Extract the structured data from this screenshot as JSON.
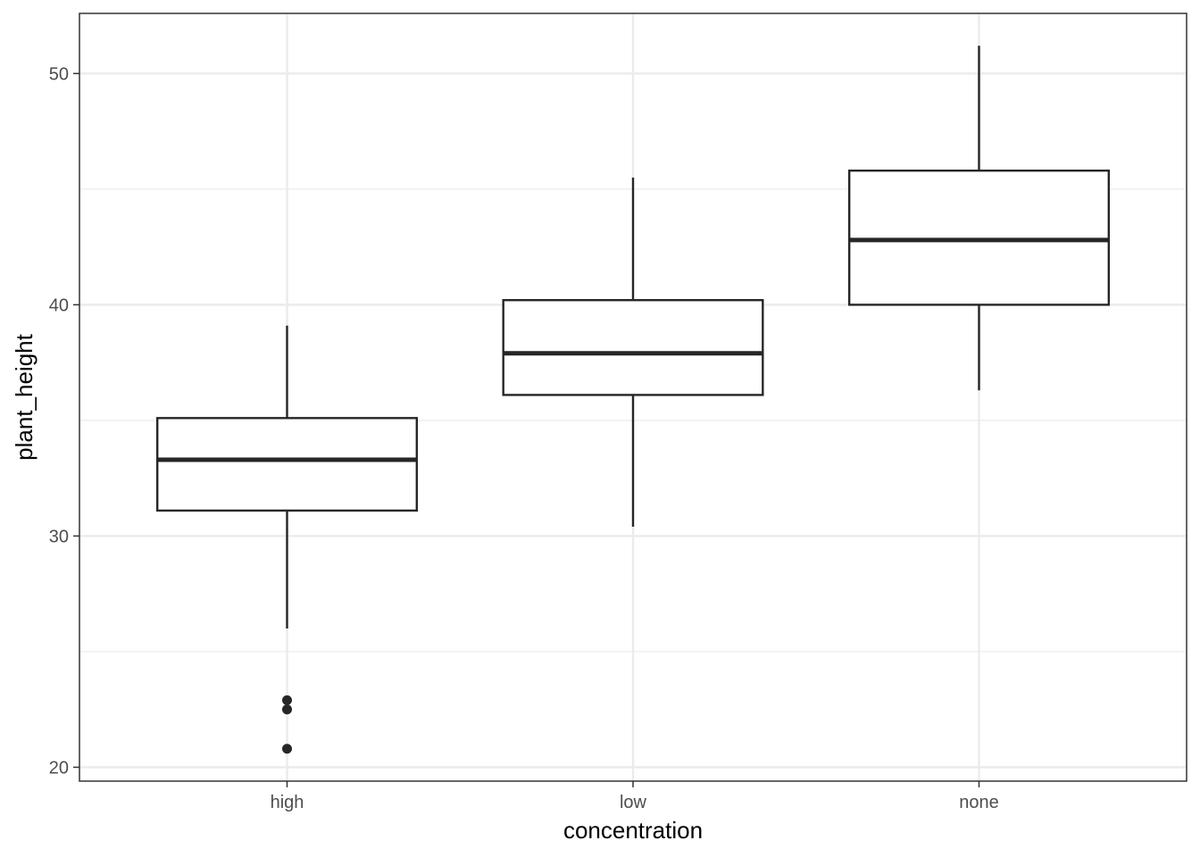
{
  "chart_data": {
    "type": "box",
    "xlabel": "concentration",
    "ylabel": "plant_height",
    "ylim": [
      19.4,
      52.6
    ],
    "yticks": [
      20,
      30,
      40,
      50
    ],
    "yminor": [
      25,
      35,
      45
    ],
    "grid": true,
    "categories": [
      "high",
      "low",
      "none"
    ],
    "boxes": [
      {
        "category": "high",
        "whisker_low": 26.0,
        "q1": 31.1,
        "median": 33.3,
        "q3": 35.1,
        "whisker_high": 39.1,
        "outliers": [
          22.9,
          22.5,
          20.8
        ]
      },
      {
        "category": "low",
        "whisker_low": 30.4,
        "q1": 36.1,
        "median": 37.9,
        "q3": 40.2,
        "whisker_high": 45.5,
        "outliers": []
      },
      {
        "category": "none",
        "whisker_low": 36.3,
        "q1": 40.0,
        "median": 42.8,
        "q3": 45.8,
        "whisker_high": 51.2,
        "outliers": []
      }
    ],
    "colors": {
      "box_line": "#262626",
      "grid": "#ebebeb",
      "panel_border": "#333333",
      "tick_text": "#4d4d4d"
    }
  }
}
